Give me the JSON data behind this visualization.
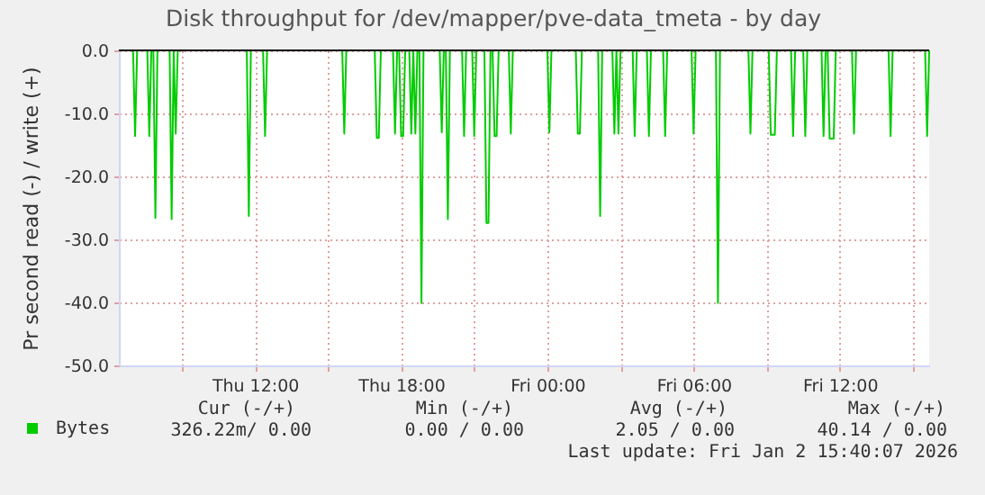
{
  "chart_data": {
    "type": "line",
    "title": "Disk throughput for /dev/mapper/pve-data_tmeta - by day",
    "ylabel": "Pr second read (-) / write (+)",
    "xlim": [
      "2026-01-01T06:25",
      "2026-01-02T15:40"
    ],
    "xticks": [
      {
        "value": "2026-01-01T09:00",
        "label": null
      },
      {
        "value": "2026-01-01T12:00",
        "label": "Thu 12:00"
      },
      {
        "value": "2026-01-01T15:00",
        "label": null
      },
      {
        "value": "2026-01-01T18:00",
        "label": "Thu 18:00"
      },
      {
        "value": "2026-01-01T21:00",
        "label": null
      },
      {
        "value": "2026-01-02T00:00",
        "label": "Fri 00:00"
      },
      {
        "value": "2026-01-02T03:00",
        "label": null
      },
      {
        "value": "2026-01-02T06:00",
        "label": "Fri 06:00"
      },
      {
        "value": "2026-01-02T09:00",
        "label": null
      },
      {
        "value": "2026-01-02T12:00",
        "label": "Fri 12:00"
      },
      {
        "value": "2026-01-02T15:00",
        "label": null
      }
    ],
    "ylim": [
      -50,
      0
    ],
    "yticks": [
      {
        "value": 0,
        "label": "0.0"
      },
      {
        "value": -10,
        "label": "-10.0"
      },
      {
        "value": -20,
        "label": "-20.0"
      },
      {
        "value": -30,
        "label": "-30.0"
      },
      {
        "value": -40,
        "label": "-40.0"
      },
      {
        "value": -50,
        "label": "-50.0"
      }
    ],
    "grid": true,
    "legend": "bottom",
    "x": [
      "2026-01-01T06:25",
      "2026-01-01T07:00",
      "2026-01-01T07:05",
      "2026-01-01T07:10",
      "2026-01-01T07:35",
      "2026-01-01T07:40",
      "2026-01-01T07:45",
      "2026-01-01T07:50",
      "2026-01-01T07:55",
      "2026-01-01T08:00",
      "2026-01-01T08:30",
      "2026-01-01T08:35",
      "2026-01-01T08:40",
      "2026-01-01T08:45",
      "2026-01-01T08:50",
      "2026-01-01T11:40",
      "2026-01-01T11:45",
      "2026-01-01T11:50",
      "2026-01-01T12:20",
      "2026-01-01T12:25",
      "2026-01-01T12:30",
      "2026-01-01T15:35",
      "2026-01-01T15:40",
      "2026-01-01T15:45",
      "2026-01-01T16:55",
      "2026-01-01T17:00",
      "2026-01-01T17:05",
      "2026-01-01T17:10",
      "2026-01-01T17:40",
      "2026-01-01T17:45",
      "2026-01-01T17:50",
      "2026-01-01T17:55",
      "2026-01-01T18:00",
      "2026-01-01T18:05",
      "2026-01-01T18:10",
      "2026-01-01T18:20",
      "2026-01-01T18:25",
      "2026-01-01T18:30",
      "2026-01-01T18:35",
      "2026-01-01T18:40",
      "2026-01-01T18:45",
      "2026-01-01T18:50",
      "2026-01-01T18:55",
      "2026-01-01T19:35",
      "2026-01-01T19:40",
      "2026-01-01T19:45",
      "2026-01-01T19:50",
      "2026-01-01T19:55",
      "2026-01-01T20:00",
      "2026-01-01T20:30",
      "2026-01-01T20:35",
      "2026-01-01T20:40",
      "2026-01-01T20:55",
      "2026-01-01T21:00",
      "2026-01-01T21:05",
      "2026-01-01T21:25",
      "2026-01-01T21:30",
      "2026-01-01T21:35",
      "2026-01-01T21:40",
      "2026-01-01T21:45",
      "2026-01-01T21:50",
      "2026-01-01T21:55",
      "2026-01-01T22:00",
      "2026-01-01T22:25",
      "2026-01-01T22:30",
      "2026-01-01T22:35",
      "2026-01-02T00:00",
      "2026-01-02T00:05",
      "2026-01-02T00:10",
      "2026-01-02T01:10",
      "2026-01-02T01:15",
      "2026-01-02T01:20",
      "2026-01-02T01:25",
      "2026-01-02T02:05",
      "2026-01-02T02:10",
      "2026-01-02T02:15",
      "2026-01-02T02:40",
      "2026-01-02T02:45",
      "2026-01-02T02:50",
      "2026-01-02T02:55",
      "2026-01-02T03:00",
      "2026-01-02T03:30",
      "2026-01-02T03:35",
      "2026-01-02T03:40",
      "2026-01-02T04:05",
      "2026-01-02T04:10",
      "2026-01-02T04:15",
      "2026-01-02T04:45",
      "2026-01-02T04:50",
      "2026-01-02T04:55",
      "2026-01-02T05:55",
      "2026-01-02T06:00",
      "2026-01-02T06:05",
      "2026-01-02T06:55",
      "2026-01-02T07:00",
      "2026-01-02T07:05",
      "2026-01-02T08:15",
      "2026-01-02T08:20",
      "2026-01-02T08:25",
      "2026-01-02T09:05",
      "2026-01-02T09:10",
      "2026-01-02T09:15",
      "2026-01-02T09:20",
      "2026-01-02T09:25",
      "2026-01-02T10:00",
      "2026-01-02T10:05",
      "2026-01-02T10:10",
      "2026-01-02T10:30",
      "2026-01-02T10:35",
      "2026-01-02T10:40",
      "2026-01-02T11:15",
      "2026-01-02T11:20",
      "2026-01-02T11:25",
      "2026-01-02T11:30",
      "2026-01-02T11:35",
      "2026-01-02T11:40",
      "2026-01-02T11:45",
      "2026-01-02T11:50",
      "2026-01-02T12:30",
      "2026-01-02T12:35",
      "2026-01-02T12:40",
      "2026-01-02T14:00",
      "2026-01-02T14:05",
      "2026-01-02T14:10",
      "2026-01-02T15:30",
      "2026-01-02T15:35",
      "2026-01-02T15:40"
    ],
    "series": [
      {
        "name": "Bytes",
        "color": "#00cc00",
        "values": [
          0,
          0,
          -13.6,
          0,
          0,
          -13.6,
          0,
          0,
          -26.6,
          0,
          0,
          -26.8,
          0,
          -13.2,
          0,
          0,
          -26.3,
          0,
          0,
          -13.6,
          0,
          0,
          -13.2,
          0,
          0,
          -13.9,
          -13.9,
          0,
          0,
          -13.2,
          0,
          0,
          -13.6,
          -13.6,
          0,
          0,
          -13.2,
          0,
          -13.2,
          0,
          0,
          -40.1,
          0,
          0,
          -13.0,
          0,
          0,
          -26.8,
          0,
          0,
          -13.6,
          0,
          0,
          -13.6,
          0,
          0,
          -27.4,
          -27.4,
          0,
          0,
          -13.6,
          -13.6,
          0,
          0,
          -13.2,
          0,
          0,
          -13.0,
          0,
          0,
          -13.2,
          -13.2,
          0,
          0,
          -26.3,
          0,
          0,
          -13.2,
          0,
          -13.2,
          0,
          0,
          -13.6,
          0,
          0,
          -13.6,
          0,
          0,
          -13.6,
          0,
          0,
          -13.2,
          0,
          0,
          -40.1,
          0,
          0,
          -13.2,
          0,
          0,
          -13.4,
          -13.4,
          -13.4,
          0,
          0,
          -13.6,
          0,
          0,
          -13.6,
          0,
          0,
          -13.6,
          0,
          0,
          -14.0,
          -14.0,
          -14.0,
          0,
          0,
          -13.2,
          0,
          0,
          -13.6,
          0,
          0,
          -13.6,
          0
        ]
      }
    ],
    "ref_lines": [
      {
        "axis": "y",
        "value": 0,
        "color": "#000000"
      }
    ],
    "annotations": [
      "Cur (-/+)",
      "Min (-/+)",
      "Avg (-/+)",
      "Max (-/+)",
      "326.22m/   0.00",
      "0.00 /    0.00",
      "2.05 /    0.00",
      "40.14 /    0.00",
      "Last update: Fri Jan  2 15:40:07 2026"
    ]
  }
}
